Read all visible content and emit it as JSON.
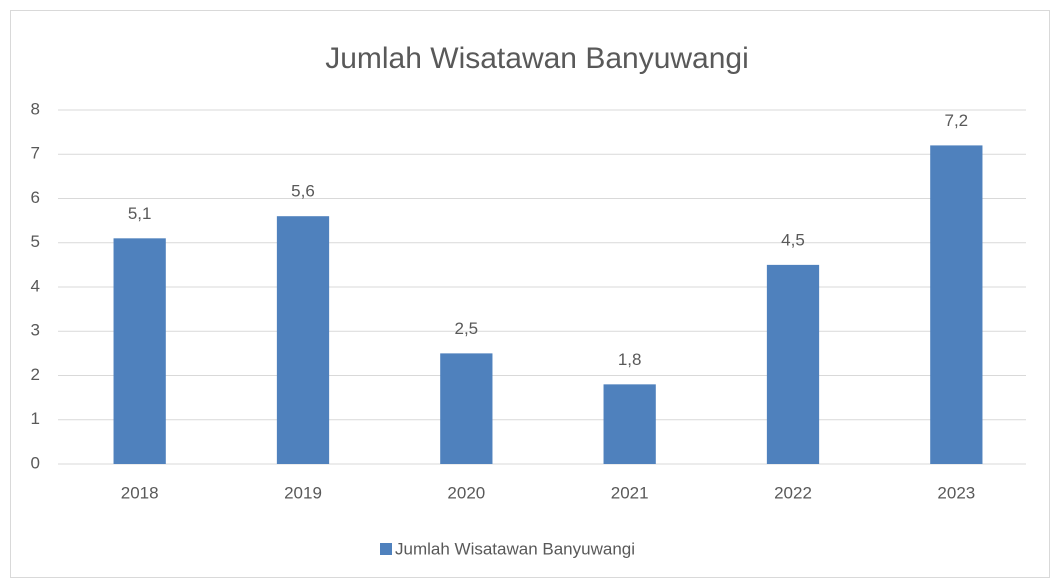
{
  "chart_data": {
    "type": "bar",
    "title": "Jumlah Wisatawan Banyuwangi",
    "categories": [
      "2018",
      "2019",
      "2020",
      "2021",
      "2022",
      "2023"
    ],
    "series": [
      {
        "name": "Jumlah Wisatawan Banyuwangi",
        "color": "#4f81bd",
        "values": [
          5.1,
          5.6,
          2.5,
          1.8,
          4.5,
          7.2
        ],
        "value_labels": [
          "5,1",
          "5,6",
          "2,5",
          "1,8",
          "4,5",
          "7,2"
        ]
      }
    ],
    "ylim": [
      0,
      8
    ],
    "yticks": [
      0,
      1,
      2,
      3,
      4,
      5,
      6,
      7,
      8
    ],
    "grid": true,
    "legend": "bottom"
  }
}
